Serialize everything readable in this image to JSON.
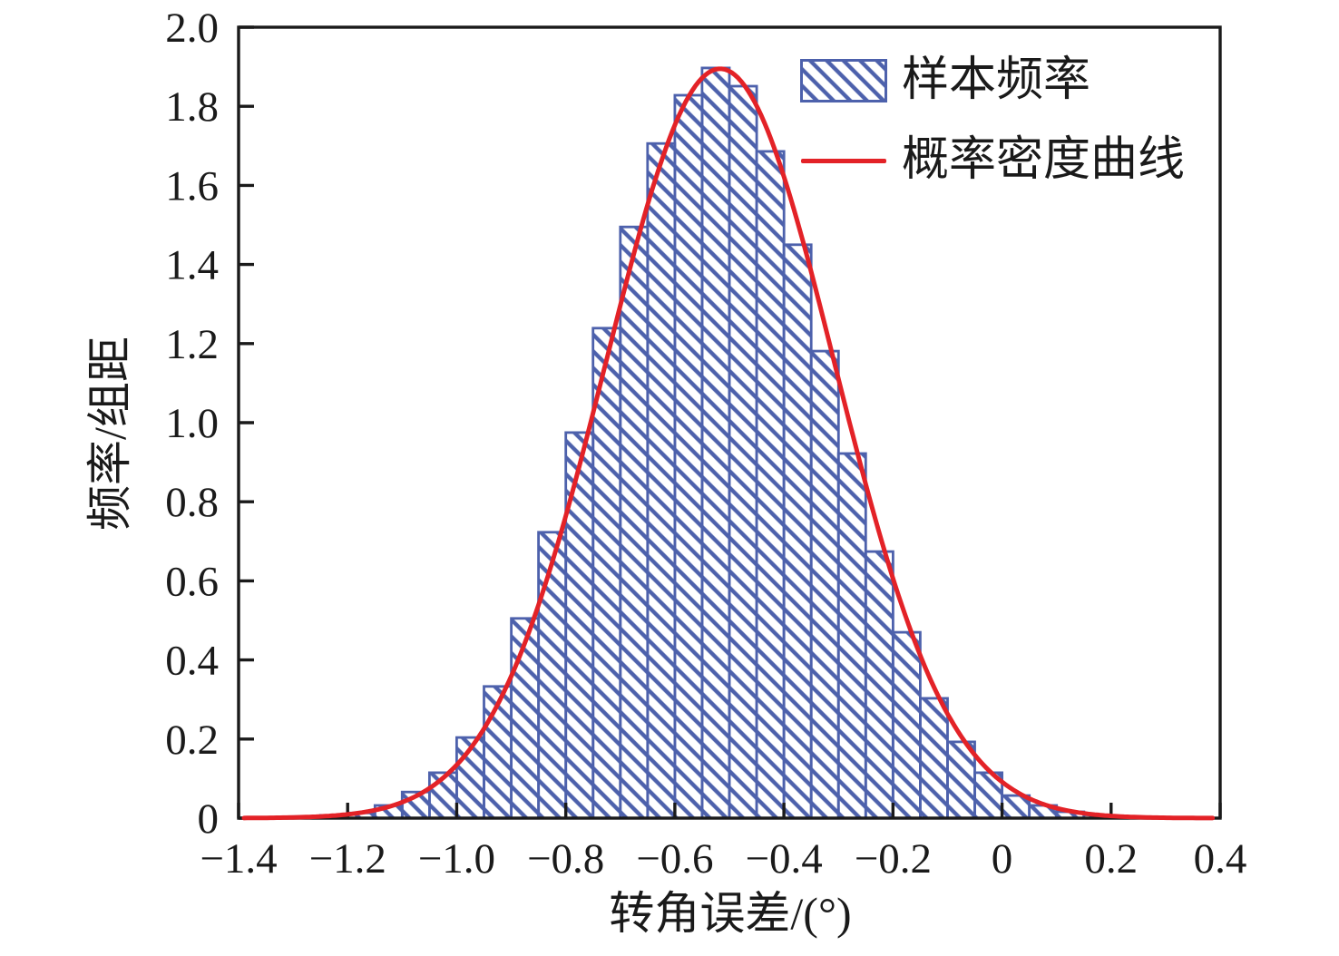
{
  "figure": {
    "x_axis_label": "转角误差/(°)",
    "y_axis_label": "频率/组距"
  },
  "legend": {
    "items": [
      {
        "label": "样本频率",
        "marker": "hatched-rect"
      },
      {
        "label": "概率密度曲线",
        "marker": "red-line"
      }
    ]
  },
  "chart_data": {
    "type": "bar",
    "subtype": "histogram_with_density_curve",
    "title": "",
    "xlabel": "转角误差/(°)",
    "ylabel": "频率/组距",
    "xlim": [
      -1.4,
      0.4
    ],
    "ylim": [
      0,
      2.0
    ],
    "grid": false,
    "legend_position": "upper right",
    "x_ticks": {
      "values": [
        -1.4,
        -1.2,
        -1.0,
        -0.8,
        -0.6,
        -0.4,
        -0.2,
        0,
        0.2,
        0.4
      ],
      "labels": [
        "−1.4",
        "−1.2",
        "−1.0",
        "−0.8",
        "−0.6",
        "−0.4",
        "−0.2",
        "0",
        "0.2",
        "0.4"
      ]
    },
    "y_ticks": {
      "values": [
        0,
        0.2,
        0.4,
        0.6,
        0.8,
        1.0,
        1.2,
        1.4,
        1.6,
        1.8,
        2.0
      ],
      "labels": [
        "0",
        "0.2",
        "0.4",
        "0.6",
        "0.8",
        "1.0",
        "1.2",
        "1.4",
        "1.6",
        "1.8",
        "2.0"
      ]
    },
    "bin_width": 0.05,
    "series_name": "样本频率",
    "bins": [
      [
        -1.3,
        0.004
      ],
      [
        -1.25,
        0.007
      ],
      [
        -1.2,
        0.013
      ],
      [
        -1.15,
        0.032
      ],
      [
        -1.1,
        0.066
      ],
      [
        -1.05,
        0.115
      ],
      [
        -1.0,
        0.204
      ],
      [
        -0.95,
        0.333
      ],
      [
        -0.9,
        0.505
      ],
      [
        -0.85,
        0.723
      ],
      [
        -0.8,
        0.975
      ],
      [
        -0.75,
        1.239
      ],
      [
        -0.7,
        1.495
      ],
      [
        -0.65,
        1.706
      ],
      [
        -0.6,
        1.828
      ],
      [
        -0.55,
        1.897
      ],
      [
        -0.5,
        1.851
      ],
      [
        -0.45,
        1.686
      ],
      [
        -0.4,
        1.45
      ],
      [
        -0.35,
        1.181
      ],
      [
        -0.3,
        0.922
      ],
      [
        -0.25,
        0.674
      ],
      [
        -0.2,
        0.47
      ],
      [
        -0.15,
        0.303
      ],
      [
        -0.1,
        0.193
      ],
      [
        -0.05,
        0.115
      ],
      [
        0.0,
        0.057
      ],
      [
        0.05,
        0.032
      ],
      [
        0.1,
        0.016
      ],
      [
        0.15,
        0.008
      ]
    ],
    "curve": {
      "name": "概率密度曲线",
      "shape": "gaussian",
      "mean": -0.517,
      "sigma": 0.21,
      "peak": 1.895
    },
    "colors": {
      "bar_edge": "#4d61ac",
      "bar_hatch": "#4d61ac",
      "curve": "#e32227",
      "axis": "#1a1a1a"
    }
  }
}
